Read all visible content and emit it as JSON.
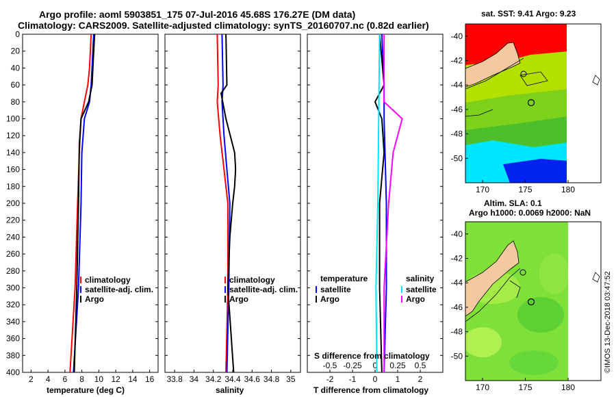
{
  "title": {
    "line1": "Argo profile: aoml 5903851_175 07-Jul-2016 45.68S 176.27E (DM data)",
    "line2": "Climatology: CARS2009. Satellite-adjusted climatology: synTS_20160707.nc (0.82d earlier)"
  },
  "colors": {
    "climatology": "#ff0000",
    "satellite_adj": "#0000ff",
    "argo": "#000000",
    "sal_satellite": "#00e5ff",
    "sal_argo": "#ff00ff",
    "land": "#f5c9a0"
  },
  "legend": {
    "climatology": "climatology",
    "satellite_adj": "satellite-adj. clim.",
    "argo": "Argo"
  },
  "diff_legend": {
    "temp_header": "temperature",
    "sal_header": "salinity",
    "satellite": "satellite",
    "argo": "Argo"
  },
  "chart_data": [
    {
      "type": "line",
      "xlabel": "temperature (deg C)",
      "ylabel": "",
      "xlim": [
        1,
        17
      ],
      "ylim": [
        400,
        0
      ],
      "xticks": [
        "2",
        "4",
        "6",
        "8",
        "10",
        "12",
        "14",
        "16"
      ],
      "yticks": [
        "0",
        "20",
        "40",
        "60",
        "80",
        "100",
        "120",
        "140",
        "160",
        "180",
        "200",
        "220",
        "240",
        "260",
        "280",
        "300",
        "320",
        "340",
        "360",
        "380",
        "400"
      ],
      "series": [
        {
          "name": "climatology",
          "depth": [
            0,
            40,
            60,
            80,
            100,
            140,
            200,
            300,
            400
          ],
          "values": [
            9.1,
            8.9,
            8.7,
            8.3,
            7.9,
            7.7,
            7.5,
            7.2,
            6.6
          ]
        },
        {
          "name": "satellite-adj. clim.",
          "depth": [
            0,
            40,
            60,
            80,
            100,
            140,
            200,
            300,
            400
          ],
          "values": [
            9.4,
            9.2,
            9.1,
            8.9,
            8.3,
            8.0,
            7.9,
            7.6,
            7.0
          ]
        },
        {
          "name": "Argo",
          "depth": [
            0,
            40,
            60,
            80,
            100,
            130,
            200,
            300,
            400
          ],
          "values": [
            9.5,
            9.3,
            9.2,
            8.8,
            7.9,
            7.7,
            7.6,
            7.4,
            7.1
          ]
        }
      ]
    },
    {
      "type": "line",
      "xlabel": "salinity",
      "xlim": [
        33.7,
        35.1
      ],
      "ylim": [
        400,
        0
      ],
      "xticks": [
        "33.8",
        "34",
        "34.2",
        "34.4",
        "34.6",
        "34.8",
        "35"
      ],
      "series": [
        {
          "name": "climatology",
          "depth": [
            0,
            60,
            80,
            120,
            160,
            200,
            300,
            400
          ],
          "values": [
            34.24,
            34.25,
            34.24,
            34.27,
            34.31,
            34.35,
            34.35,
            34.33
          ]
        },
        {
          "name": "satellite-adj. clim.",
          "depth": [
            0,
            60,
            80,
            120,
            160,
            200,
            300,
            400
          ],
          "values": [
            34.29,
            34.3,
            34.29,
            34.31,
            34.34,
            34.37,
            34.36,
            34.34
          ]
        },
        {
          "name": "Argo",
          "depth": [
            0,
            60,
            70,
            100,
            140,
            160,
            180,
            200,
            240,
            300,
            400
          ],
          "values": [
            34.33,
            34.34,
            34.28,
            34.33,
            34.42,
            34.43,
            34.42,
            34.4,
            34.37,
            34.35,
            34.41
          ]
        }
      ]
    },
    {
      "type": "line",
      "xlabel": "T difference from climatology",
      "title": "S difference from climatology",
      "xlim": [
        -3,
        3
      ],
      "ylim": [
        400,
        0
      ],
      "xticks": [
        "-2",
        "-1",
        "0",
        "1",
        "2"
      ],
      "xticks_top": [
        "-0.5",
        "-0.25",
        "0",
        "0.25",
        "0.5"
      ],
      "series": [
        {
          "name": "temperature satellite",
          "depth": [
            0,
            60,
            100,
            200,
            300,
            400
          ],
          "values": [
            0.3,
            0.4,
            0.4,
            0.5,
            0.5,
            0.4
          ]
        },
        {
          "name": "temperature Argo",
          "depth": [
            0,
            60,
            80,
            100,
            140,
            200,
            300,
            400
          ],
          "values": [
            0.2,
            0.4,
            0.0,
            0.3,
            0.4,
            0.2,
            0.2,
            0.3
          ]
        },
        {
          "name": "salinity satellite",
          "depth": [
            0,
            100,
            200,
            300,
            400
          ],
          "values": [
            0.05,
            0.04,
            0.03,
            0.01,
            0.02
          ]
        },
        {
          "name": "salinity Argo",
          "depth": [
            0,
            80,
            100,
            140,
            200,
            300,
            400
          ],
          "values": [
            0.1,
            0.1,
            0.3,
            0.2,
            0.15,
            0.1,
            0.1
          ]
        }
      ]
    },
    {
      "type": "heatmap",
      "title": "sat. SST: 9.41 Argo: 9.23",
      "xticks": [
        "170",
        "175",
        "180"
      ],
      "yticks": [
        "-40",
        "-42",
        "-44",
        "-46",
        "-48",
        "-50"
      ]
    },
    {
      "type": "heatmap",
      "title": "Altim. SLA: 0.1",
      "subtitle": "Argo h1000: 0.0069 h2000: NaN",
      "xticks": [
        "170",
        "175",
        "180"
      ],
      "yticks": [
        "-40",
        "-42",
        "-44",
        "-46",
        "-48",
        "-50"
      ]
    }
  ],
  "stamp": "©IMOS 13-Dec-2018 03:47:52"
}
